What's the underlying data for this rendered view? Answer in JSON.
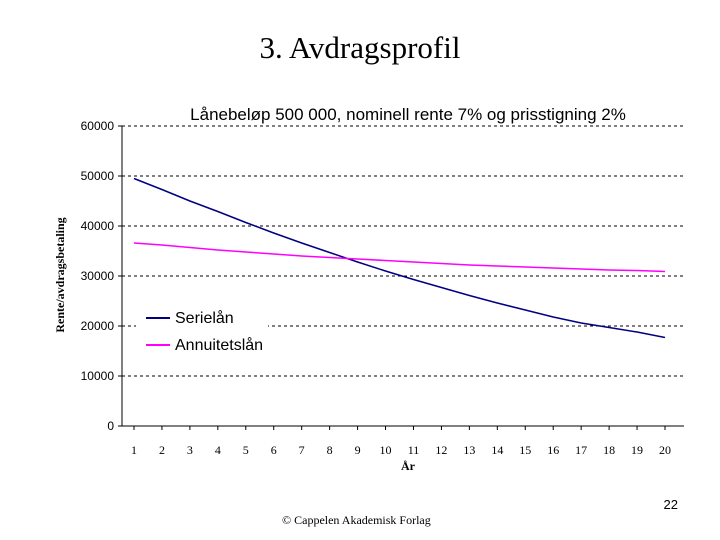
{
  "slide": {
    "title": "3. Avdragsprofil",
    "page_number": "22",
    "copyright": "© Cappelen Akademisk Forlag"
  },
  "chart_data": {
    "type": "line",
    "title": "Lånebeløp 500 000, nominell rente 7% og  prisstigning  2%",
    "xlabel": "År",
    "ylabel": "Rente/avdragsbetaling",
    "categories": [
      "1",
      "2",
      "3",
      "4",
      "5",
      "6",
      "7",
      "8",
      "9",
      "10",
      "11",
      "12",
      "13",
      "14",
      "15",
      "16",
      "17",
      "18",
      "19",
      "20"
    ],
    "ylim": [
      0,
      60000
    ],
    "yticks": [
      0,
      10000,
      20000,
      30000,
      40000,
      50000,
      60000
    ],
    "grid": "dashed-horizontal",
    "legend_position": "left-middle",
    "series": [
      {
        "name": "Serielån",
        "color": "#000080",
        "values": [
          49500,
          47300,
          45000,
          42900,
          40700,
          38600,
          36600,
          34700,
          32800,
          31000,
          29300,
          27700,
          26100,
          24600,
          23200,
          21800,
          20600,
          19700,
          18800,
          17700
        ]
      },
      {
        "name": "Annuitetslån",
        "color": "#ff00ff",
        "values": [
          36600,
          36200,
          35700,
          35200,
          34800,
          34400,
          34000,
          33700,
          33400,
          33100,
          32800,
          32500,
          32200,
          32000,
          31800,
          31600,
          31400,
          31200,
          31100,
          30900
        ]
      }
    ]
  }
}
